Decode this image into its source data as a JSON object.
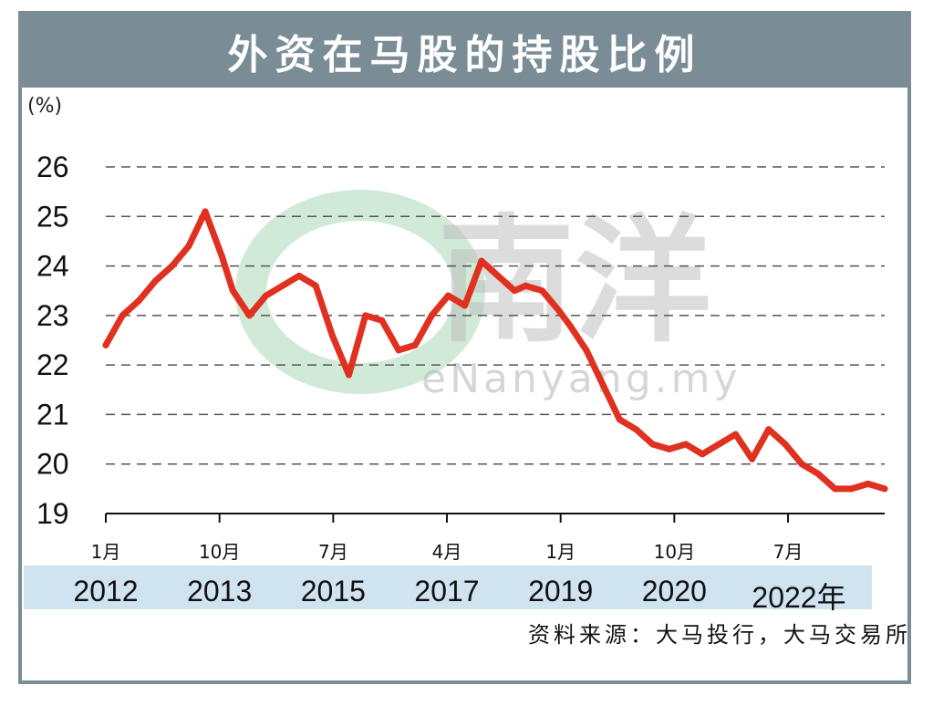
{
  "title": "外资在马股的持股比例",
  "unit_label": "(%)",
  "source": "资料来源：大马投行，大马交易所",
  "watermark": {
    "brand": "南洋",
    "site": "eNanyang.my"
  },
  "colors": {
    "frame": "#7a8d96",
    "line": "#e03020",
    "band": "#cfe3f1",
    "grid": "#555555"
  },
  "chart_data": {
    "type": "line",
    "title": "外资在马股的持股比例",
    "ylabel": "(%)",
    "xlabel": "",
    "ylim": [
      19,
      26
    ],
    "yticks": [
      "19",
      "20",
      "21",
      "22",
      "23",
      "24",
      "25",
      "26"
    ],
    "x_tick_labels": [
      "1月",
      "10月",
      "7月",
      "4月",
      "1月",
      "10月",
      "7月"
    ],
    "year_labels": [
      "2012",
      "2013",
      "2015",
      "2017",
      "2019",
      "2020",
      "2022年"
    ],
    "grid": true,
    "series": [
      {
        "x": [
          "2012-01",
          "2012-04",
          "2012-07",
          "2012-10",
          "2013-01",
          "2013-04",
          "2013-07",
          "2013-10",
          "2013-12",
          "2014-03",
          "2014-06",
          "2014-09",
          "2014-12",
          "2015-03",
          "2015-06",
          "2015-09",
          "2015-12",
          "2016-03",
          "2016-06",
          "2016-09",
          "2016-12",
          "2017-03",
          "2017-06",
          "2017-09",
          "2017-12",
          "2018-03",
          "2018-05",
          "2018-08",
          "2018-11",
          "2019-01",
          "2019-04",
          "2019-07",
          "2019-10",
          "2020-01",
          "2020-04",
          "2020-07",
          "2020-10",
          "2021-01",
          "2021-04",
          "2021-07",
          "2021-10",
          "2022-01",
          "2022-04",
          "2022-07",
          "2022-10",
          "2023-01",
          "2023-04",
          "2023-07",
          "2023-10"
        ],
        "values": [
          22.4,
          23.0,
          23.3,
          23.7,
          24.0,
          24.4,
          25.1,
          24.2,
          23.5,
          23.0,
          23.4,
          23.6,
          23.8,
          23.6,
          22.6,
          21.8,
          23.0,
          22.9,
          22.3,
          22.4,
          23.0,
          23.4,
          23.2,
          24.1,
          23.8,
          23.5,
          23.6,
          23.5,
          23.1,
          22.8,
          22.3,
          21.6,
          20.9,
          20.7,
          20.4,
          20.3,
          20.4,
          20.2,
          20.4,
          20.6,
          20.1,
          20.7,
          20.4,
          20.0,
          19.8,
          19.5,
          19.5,
          19.6,
          19.5
        ]
      }
    ]
  }
}
